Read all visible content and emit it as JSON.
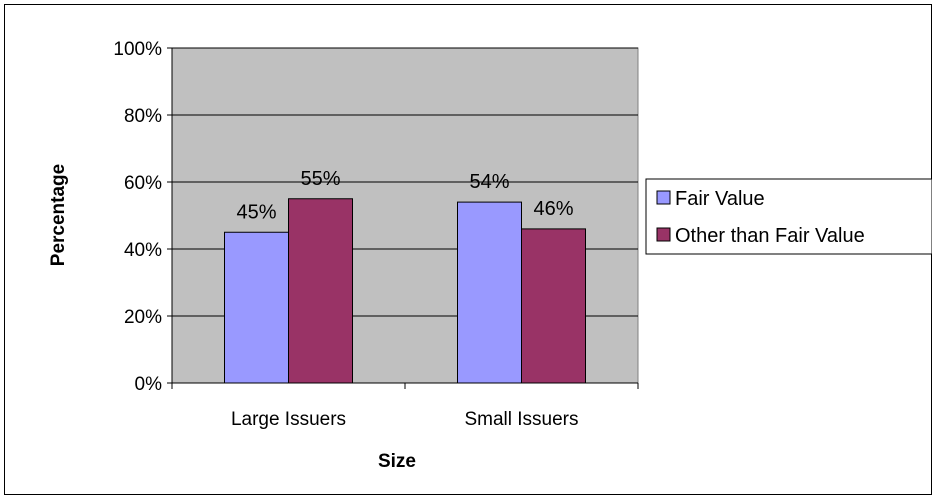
{
  "chart_data": {
    "type": "bar",
    "title": "",
    "xlabel": "Size",
    "ylabel": "Percentage",
    "categories": [
      "Large Issuers",
      "Small Issuers"
    ],
    "series": [
      {
        "name": "Fair Value",
        "values": [
          45,
          54
        ],
        "labels": [
          "45%",
          "54%"
        ],
        "color": "#9999ff"
      },
      {
        "name": "Other than Fair Value",
        "values": [
          55,
          46
        ],
        "labels": [
          "55%",
          "46%"
        ],
        "color": "#993366"
      }
    ],
    "ylim": [
      0,
      100
    ],
    "yticks": [
      0,
      20,
      40,
      60,
      80,
      100
    ],
    "ytick_labels": [
      "0%",
      "20%",
      "40%",
      "60%",
      "80%",
      "100%"
    ],
    "grid": true,
    "plot_background": "#c0c0c0",
    "legend_position": "right"
  }
}
